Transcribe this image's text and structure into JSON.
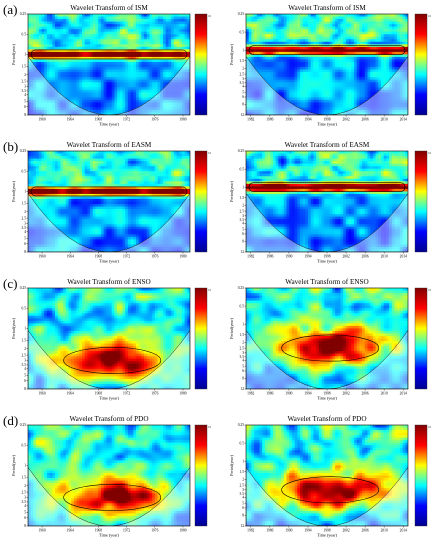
{
  "figure": {
    "panel_letters": [
      "(a)",
      "(b)",
      "(c)",
      "(d)"
    ],
    "colorbar_max_label": "16"
  },
  "chart_data": [
    {
      "id": "a-left",
      "type": "heatmap",
      "title": "Wavelet Transform of ISM",
      "xlabel": "Time (year)",
      "ylabel": "Period(year)",
      "xticks": [
        1960,
        1964,
        1968,
        1972,
        1976,
        1980
      ],
      "yticks": [
        "0.25",
        "0.5",
        "1",
        "1.5",
        "2",
        "2.5",
        "3",
        "3.5",
        "4",
        "5",
        "6",
        "8"
      ],
      "xlim": [
        1958,
        1981
      ],
      "ylim": [
        0.25,
        8
      ],
      "pattern": "band",
      "band_period": 1,
      "colorscale": [
        "#00008f",
        "#0000ff",
        "#00ffff",
        "#ffff00",
        "#ff0000",
        "#800000"
      ]
    },
    {
      "id": "a-right",
      "type": "heatmap",
      "title": "Wavelet Transform of ISM",
      "xlabel": "Time (year)",
      "ylabel": "Period(year)",
      "xticks": [
        1982,
        1986,
        1990,
        1994,
        1998,
        2002,
        2006,
        2010,
        2014
      ],
      "yticks": [
        "0.25",
        "0.5",
        "1",
        "1.5",
        "2",
        "2.5",
        "3",
        "3.5",
        "4",
        "5",
        "6",
        "8",
        "12"
      ],
      "xlim": [
        1981,
        2015
      ],
      "ylim": [
        0.25,
        12
      ],
      "pattern": "band",
      "band_period": 1,
      "colorscale": [
        "#00008f",
        "#0000ff",
        "#00ffff",
        "#ffff00",
        "#ff0000",
        "#800000"
      ]
    },
    {
      "id": "b-left",
      "type": "heatmap",
      "title": "Wavelet Transform of EASM",
      "xlabel": "Time (year)",
      "ylabel": "Period(year)",
      "xticks": [
        1960,
        1964,
        1968,
        1972,
        1976,
        1980
      ],
      "yticks": [
        "0.25",
        "0.5",
        "1",
        "1.5",
        "2",
        "2.5",
        "3",
        "3.5",
        "4",
        "5",
        "6",
        "8"
      ],
      "xlim": [
        1958,
        1981
      ],
      "ylim": [
        0.25,
        8
      ],
      "pattern": "band",
      "band_period": 1,
      "colorscale": [
        "#00008f",
        "#0000ff",
        "#00ffff",
        "#ffff00",
        "#ff0000",
        "#800000"
      ]
    },
    {
      "id": "b-right",
      "type": "heatmap",
      "title": "Wavelet Transform of EASM",
      "xlabel": "Time (year)",
      "ylabel": "Period(year)",
      "xticks": [
        1982,
        1986,
        1990,
        1994,
        1998,
        2002,
        2006,
        2010,
        2014
      ],
      "yticks": [
        "0.25",
        "0.5",
        "1",
        "1.5",
        "2",
        "2.5",
        "3",
        "3.5",
        "4",
        "5",
        "6",
        "8",
        "12"
      ],
      "xlim": [
        1981,
        2015
      ],
      "ylim": [
        0.25,
        12
      ],
      "pattern": "band",
      "band_period": 1,
      "colorscale": [
        "#00008f",
        "#0000ff",
        "#00ffff",
        "#ffff00",
        "#ff0000",
        "#800000"
      ]
    },
    {
      "id": "c-left",
      "type": "heatmap",
      "title": "Wavelet Transform of ENSO",
      "xlabel": "Time (year)",
      "ylabel": "Period(year)",
      "xticks": [
        1960,
        1964,
        1968,
        1972,
        1976,
        1980
      ],
      "yticks": [
        "0.25",
        "0.5",
        "1",
        "1.5",
        "2",
        "2.5",
        "3",
        "3.5",
        "4",
        "5",
        "6",
        "8"
      ],
      "xlim": [
        1958,
        1981
      ],
      "ylim": [
        0.25,
        8
      ],
      "pattern": "blob",
      "blob_period": 3,
      "colorscale": [
        "#00008f",
        "#0000ff",
        "#00ffff",
        "#ffff00",
        "#ff0000",
        "#800000"
      ]
    },
    {
      "id": "c-right",
      "type": "heatmap",
      "title": "Wavelet Transform of ENSO",
      "xlabel": "Time (year)",
      "ylabel": "Period(year)",
      "xticks": [
        1982,
        1986,
        1990,
        1994,
        1998,
        2002,
        2006,
        2010,
        2014
      ],
      "yticks": [
        "0.25",
        "0.5",
        "1",
        "1.5",
        "2",
        "2.5",
        "3",
        "3.5",
        "4",
        "5",
        "6",
        "8",
        "12"
      ],
      "xlim": [
        1981,
        2015
      ],
      "ylim": [
        0.25,
        12
      ],
      "pattern": "blob",
      "blob_period": 2.5,
      "colorscale": [
        "#00008f",
        "#0000ff",
        "#00ffff",
        "#ffff00",
        "#ff0000",
        "#800000"
      ]
    },
    {
      "id": "d-left",
      "type": "heatmap",
      "title": "Wavelet Transform of PDO",
      "xlabel": "Time (year)",
      "ylabel": "Period(year)",
      "xticks": [
        1960,
        1964,
        1968,
        1972,
        1976,
        1980
      ],
      "yticks": [
        "0.25",
        "0.5",
        "1",
        "1.5",
        "2",
        "2.5",
        "3",
        "3.5",
        "4",
        "5",
        "6",
        "8"
      ],
      "xlim": [
        1958,
        1981
      ],
      "ylim": [
        0.25,
        8
      ],
      "pattern": "blob",
      "blob_period": 3,
      "colorscale": [
        "#00008f",
        "#0000ff",
        "#00ffff",
        "#ffff00",
        "#ff0000",
        "#800000"
      ]
    },
    {
      "id": "d-right",
      "type": "heatmap",
      "title": "Wavelet Transform of PDO",
      "xlabel": "Time (year)",
      "ylabel": "Period(year)",
      "xticks": [
        1982,
        1986,
        1990,
        1994,
        1998,
        2002,
        2006,
        2010,
        2014
      ],
      "yticks": [
        "0.25",
        "0.5",
        "1",
        "1.5",
        "2",
        "2.5",
        "3",
        "3.5",
        "4",
        "5",
        "6",
        "8",
        "12"
      ],
      "xlim": [
        1981,
        2015
      ],
      "ylim": [
        0.25,
        12
      ],
      "pattern": "blob",
      "blob_period": 3,
      "colorscale": [
        "#00008f",
        "#0000ff",
        "#00ffff",
        "#ffff00",
        "#ff0000",
        "#800000"
      ]
    }
  ]
}
